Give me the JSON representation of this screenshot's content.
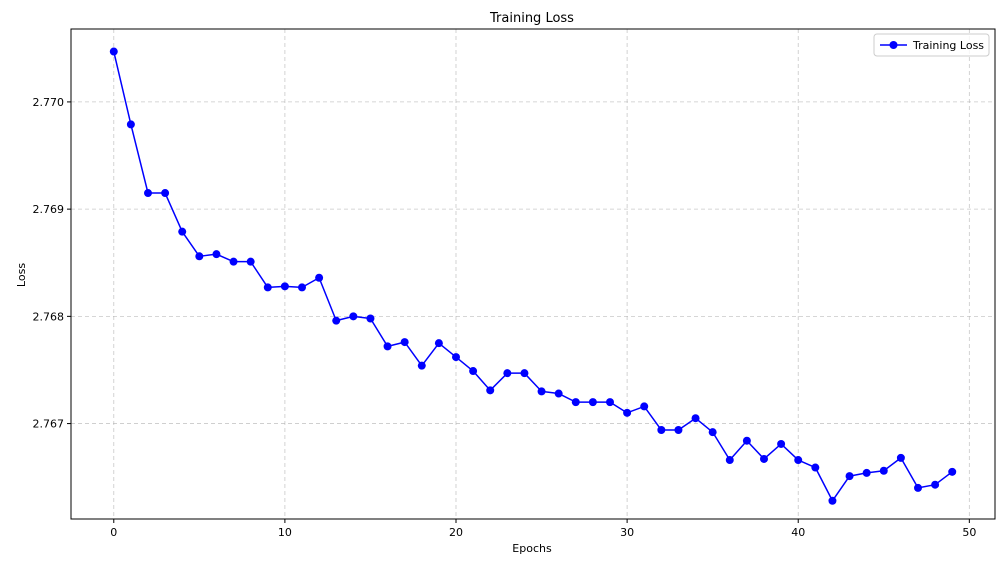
{
  "chart_data": {
    "type": "line",
    "title": "Training Loss",
    "xlabel": "Epochs",
    "ylabel": "Loss",
    "xlim": [
      -2.5,
      51.5
    ],
    "ylim": [
      2.76611,
      2.77068
    ],
    "x_ticks": [
      0,
      10,
      20,
      30,
      40,
      50
    ],
    "x_tick_labels": [
      "0",
      "10",
      "20",
      "30",
      "40",
      "50"
    ],
    "y_ticks": [
      2.767,
      2.768,
      2.769,
      2.77
    ],
    "y_tick_labels": [
      "2.767",
      "2.768",
      "2.769",
      "2.770"
    ],
    "grid": true,
    "legend_position": "top-right",
    "colors": {
      "series": "#0000ff",
      "grid": "#b0b0b0",
      "axes": "#000000"
    },
    "series": [
      {
        "name": "Training Loss",
        "marker": "circle",
        "x": [
          0,
          1,
          2,
          3,
          4,
          5,
          6,
          7,
          8,
          9,
          10,
          11,
          12,
          13,
          14,
          15,
          16,
          17,
          18,
          19,
          20,
          21,
          22,
          23,
          24,
          25,
          26,
          27,
          28,
          29,
          30,
          31,
          32,
          33,
          34,
          35,
          36,
          37,
          38,
          39,
          40,
          41,
          42,
          43,
          44,
          45,
          46,
          47,
          48,
          49
        ],
        "values": [
          2.77047,
          2.76979,
          2.76915,
          2.76915,
          2.76879,
          2.76856,
          2.76858,
          2.76851,
          2.76851,
          2.76827,
          2.76828,
          2.76827,
          2.76836,
          2.76796,
          2.768,
          2.76798,
          2.76772,
          2.76776,
          2.76754,
          2.76775,
          2.76762,
          2.76749,
          2.76731,
          2.76747,
          2.76747,
          2.7673,
          2.76728,
          2.7672,
          2.7672,
          2.7672,
          2.7671,
          2.76716,
          2.76694,
          2.76694,
          2.76705,
          2.76692,
          2.76666,
          2.76684,
          2.76667,
          2.76681,
          2.76666,
          2.76659,
          2.76628,
          2.76651,
          2.76654,
          2.76656,
          2.76668,
          2.7664,
          2.76643,
          2.76655
        ]
      }
    ]
  }
}
